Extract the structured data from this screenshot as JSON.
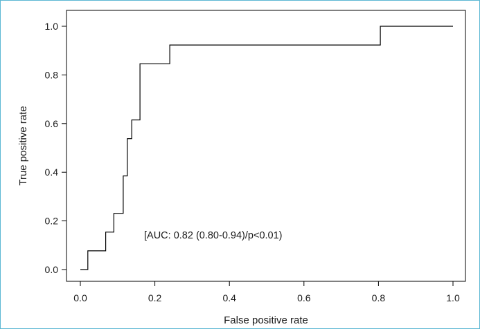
{
  "chart_data": {
    "type": "line",
    "xlabel": "False positive rate",
    "ylabel": "True positive rate",
    "xlim": [
      0.0,
      1.0
    ],
    "ylim": [
      0.0,
      1.0
    ],
    "x_ticks": [
      "0.0",
      "0.2",
      "0.4",
      "0.6",
      "0.8",
      "1.0"
    ],
    "y_ticks": [
      "0.0",
      "0.2",
      "0.4",
      "0.6",
      "0.8",
      "1.0"
    ],
    "grid": false,
    "annotation": "[AUC: 0.82 (0.80-0.94)/p<0.01)",
    "line_color": "#000000",
    "series": [
      {
        "x": [
          0.0,
          0.02,
          0.02,
          0.068,
          0.068,
          0.09,
          0.09,
          0.115,
          0.115,
          0.126,
          0.126,
          0.138,
          0.138,
          0.16,
          0.16,
          0.24,
          0.24,
          0.805,
          0.805,
          1.0
        ],
        "y": [
          0.0,
          0.0,
          0.077,
          0.077,
          0.154,
          0.154,
          0.231,
          0.231,
          0.385,
          0.385,
          0.538,
          0.538,
          0.615,
          0.615,
          0.846,
          0.846,
          0.923,
          0.923,
          1.0,
          1.0
        ]
      }
    ]
  }
}
